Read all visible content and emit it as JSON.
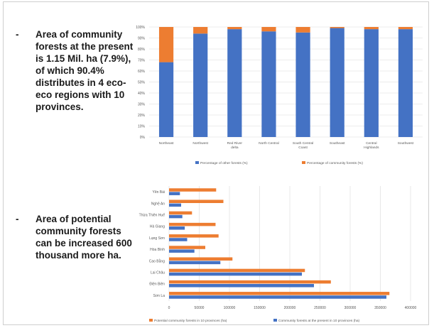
{
  "bullets": [
    {
      "marker": "-",
      "text": "Area of community forests at the present is 1.15 Mil. ha (7.9%), of which 90.4% distributes in 4 eco-eco regions with 10 provinces."
    },
    {
      "marker": "-",
      "text": "Area of potential community forests can be increased 600 thousand more ha."
    }
  ],
  "colors": {
    "blue": "#4472c4",
    "orange": "#ed7d31",
    "grid": "#d9d9d9",
    "axis_text": "#595959"
  },
  "chart_data": [
    {
      "type": "bar",
      "stacked": true,
      "percent": true,
      "categories": [
        "Northeast",
        "Northwest",
        "Red River delta",
        "North Central",
        "South Central Coast",
        "Southeast",
        "Central Highlands",
        "Southwest"
      ],
      "series": [
        {
          "name": "Percentage of other forests (%)",
          "color": "#4472c4",
          "values": [
            68,
            94,
            98,
            96,
            95,
            99,
            98,
            98
          ]
        },
        {
          "name": "Percentage of community forests (%)",
          "color": "#ed7d31",
          "values": [
            32,
            6,
            2,
            4,
            5,
            1,
            2,
            2
          ]
        }
      ],
      "yticks": [
        "0%",
        "10%",
        "20%",
        "30%",
        "40%",
        "50%",
        "60%",
        "70%",
        "80%",
        "90%",
        "100%"
      ],
      "ylim": [
        0,
        100
      ],
      "grid": true,
      "legend": "bottom"
    },
    {
      "type": "bar",
      "orientation": "horizontal",
      "categories": [
        "Yên Bái",
        "Nghệ An",
        "Thừa Thiên Huế",
        "Hà Giang",
        "Lạng Sơn",
        "Hòa Bình",
        "Cao Bằng",
        "Lai Châu",
        "Điện Biên",
        "Sơn La"
      ],
      "series": [
        {
          "name": "Potential community forests in 10 provinces (ha)",
          "color": "#ed7d31",
          "values": [
            78000,
            90000,
            38000,
            77000,
            82000,
            60000,
            105000,
            225000,
            268000,
            365000
          ]
        },
        {
          "name": "Community forests at the present in 10 provinces (ha)",
          "color": "#4472c4",
          "values": [
            18000,
            20000,
            22000,
            26000,
            30000,
            42000,
            85000,
            220000,
            240000,
            360000
          ]
        }
      ],
      "xticks": [
        "0",
        "50000",
        "100000",
        "150000",
        "200000",
        "250000",
        "300000",
        "350000",
        "400000"
      ],
      "xlim": [
        0,
        400000
      ],
      "grid": true,
      "legend": "bottom"
    }
  ]
}
